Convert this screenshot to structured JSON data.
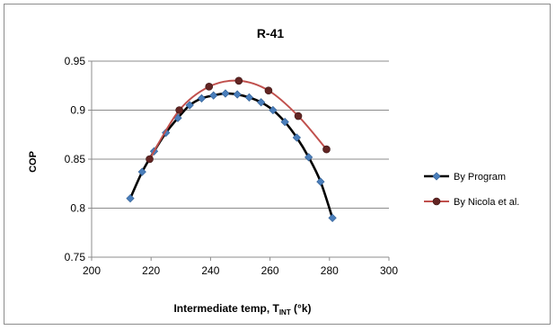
{
  "chart_data": {
    "type": "line",
    "title": "R-41",
    "xlabel": {
      "text": "Intermediate temp, T",
      "subscript": "INT",
      "suffix": " (°k)"
    },
    "ylabel": "COP",
    "xlim": [
      200,
      300
    ],
    "ylim": [
      0.75,
      0.95
    ],
    "xticks": [
      200,
      220,
      240,
      260,
      280,
      300
    ],
    "yticks": [
      0.75,
      0.8,
      0.85,
      0.9,
      0.95
    ],
    "ytick_labels": [
      "0.75",
      "0.8",
      "0.85",
      "0.9",
      "0.95"
    ],
    "grid": "horizontal",
    "legend_position": "right",
    "series": [
      {
        "name": "By Program",
        "color": "#4a7ebb",
        "line_color": "#000000",
        "marker": "diamond",
        "x": [
          213,
          217,
          221,
          225,
          229,
          233,
          237,
          241,
          245,
          249,
          253,
          257,
          261,
          265,
          269,
          273,
          277,
          281
        ],
        "y": [
          0.81,
          0.837,
          0.858,
          0.877,
          0.892,
          0.905,
          0.912,
          0.915,
          0.917,
          0.916,
          0.913,
          0.908,
          0.9,
          0.888,
          0.872,
          0.852,
          0.827,
          0.79
        ]
      },
      {
        "name": "By Nicola et al.",
        "color": "#632523",
        "line_color": "#c0504d",
        "marker": "circle",
        "x": [
          219.5,
          229.5,
          239.5,
          249.5,
          259.5,
          269.5,
          279
        ],
        "y": [
          0.85,
          0.9,
          0.924,
          0.93,
          0.92,
          0.894,
          0.86
        ]
      }
    ]
  }
}
